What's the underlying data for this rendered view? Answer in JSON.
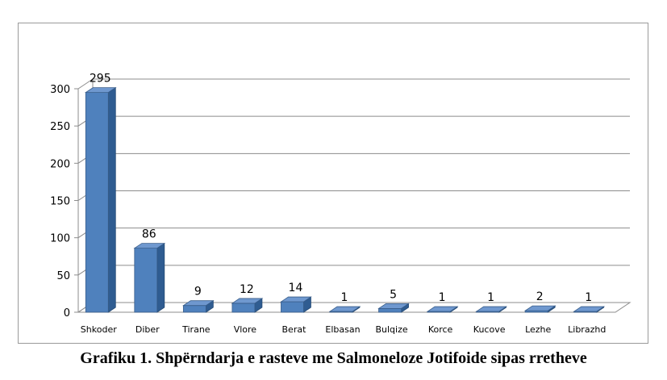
{
  "chart_data": {
    "type": "bar",
    "categories": [
      "Shkoder",
      "Diber",
      "Tirane",
      "Vlore",
      "Berat",
      "Elbasan",
      "Bulqize",
      "Korce",
      "Kucove",
      "Lezhe",
      "Librazhd"
    ],
    "values": [
      295,
      86,
      9,
      12,
      14,
      1,
      5,
      1,
      1,
      2,
      1
    ],
    "ylim": [
      0,
      300
    ],
    "yticks": [
      0,
      50,
      100,
      150,
      200,
      250,
      300
    ],
    "grid": true,
    "legend": "none",
    "bar_color": "#4f81bd",
    "style": "3d"
  },
  "caption": "Grafiku 1. Shpërndarja e rasteve me Salmoneloze Jotifoide sipas rretheve"
}
